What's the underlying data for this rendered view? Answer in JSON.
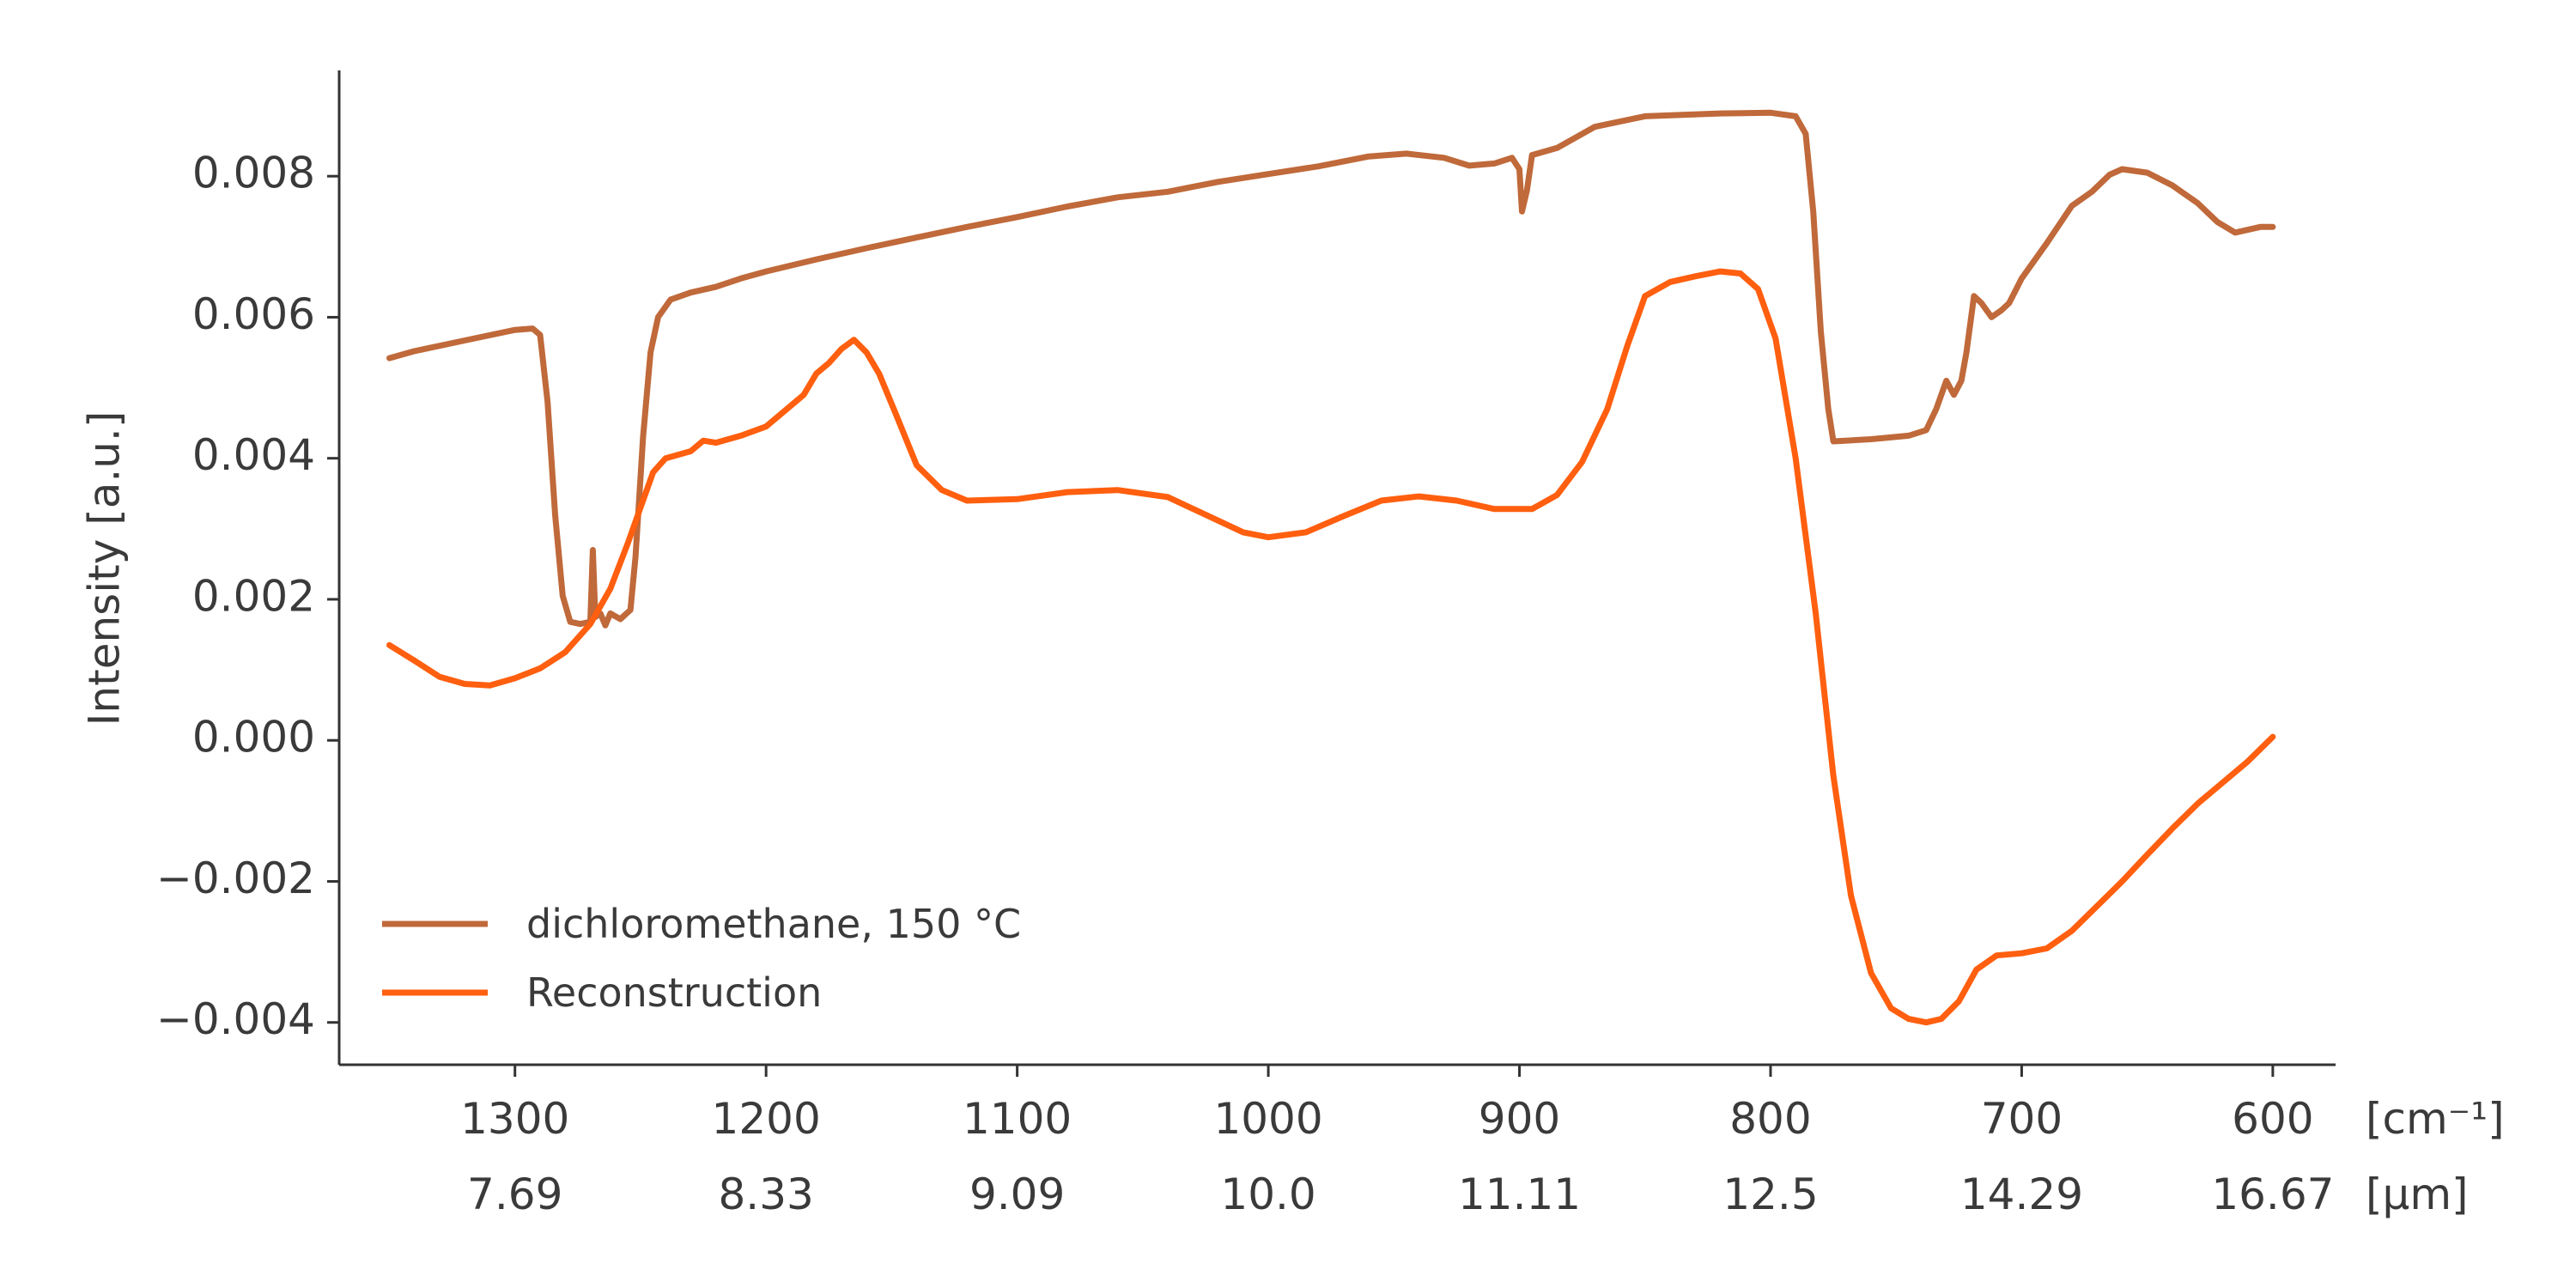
{
  "chart_data": {
    "type": "line",
    "xlabel": "",
    "ylabel": "Intensity [a.u.]",
    "x_unit_primary": "[cm⁻¹]",
    "x_unit_secondary": "[μm]",
    "x_reversed": true,
    "xlim": [
      1370,
      575
    ],
    "ylim": [
      -0.0046,
      0.0095
    ],
    "x_ticks": [
      1300,
      1200,
      1100,
      1000,
      900,
      800,
      700,
      600
    ],
    "x_tick_labels": [
      "1300",
      "1200",
      "1100",
      "1000",
      "900",
      "800",
      "700",
      "600"
    ],
    "x_tick_labels_secondary": [
      "7.69",
      "8.33",
      "9.09",
      "10.0",
      "11.11",
      "12.5",
      "14.29",
      "16.67"
    ],
    "y_ticks": [
      0.008,
      0.006,
      0.004,
      0.002,
      0.0,
      -0.002,
      -0.004
    ],
    "y_tick_labels": [
      "0.008",
      "0.006",
      "0.004",
      "0.002",
      "0.000",
      "−0.002",
      "−0.004"
    ],
    "grid": false,
    "legend_position": "bottom-left",
    "series": [
      {
        "name": "dichloromethane, 150 °C",
        "color": "#c0693a",
        "points": [
          [
            1350,
            0.00542
          ],
          [
            1340,
            0.00552
          ],
          [
            1320,
            0.00567
          ],
          [
            1300,
            0.00582
          ],
          [
            1293,
            0.00584
          ],
          [
            1290,
            0.00575
          ],
          [
            1287,
            0.0048
          ],
          [
            1284,
            0.0032
          ],
          [
            1281,
            0.00205
          ],
          [
            1278,
            0.00168
          ],
          [
            1274,
            0.00165
          ],
          [
            1270,
            0.00168
          ],
          [
            1269,
            0.0027
          ],
          [
            1268,
            0.00175
          ],
          [
            1266,
            0.0018
          ],
          [
            1264,
            0.00163
          ],
          [
            1262,
            0.0018
          ],
          [
            1258,
            0.00172
          ],
          [
            1254,
            0.00185
          ],
          [
            1252,
            0.0026
          ],
          [
            1249,
            0.0043
          ],
          [
            1246,
            0.0055
          ],
          [
            1243,
            0.006
          ],
          [
            1238,
            0.00625
          ],
          [
            1230,
            0.00635
          ],
          [
            1220,
            0.00643
          ],
          [
            1210,
            0.00655
          ],
          [
            1200,
            0.00665
          ],
          [
            1180,
            0.00682
          ],
          [
            1160,
            0.00698
          ],
          [
            1140,
            0.00713
          ],
          [
            1120,
            0.00728
          ],
          [
            1100,
            0.00742
          ],
          [
            1080,
            0.00757
          ],
          [
            1060,
            0.0077
          ],
          [
            1040,
            0.00778
          ],
          [
            1020,
            0.00792
          ],
          [
            1000,
            0.00803
          ],
          [
            980,
            0.00814
          ],
          [
            960,
            0.00828
          ],
          [
            945,
            0.00832
          ],
          [
            930,
            0.00826
          ],
          [
            920,
            0.00815
          ],
          [
            910,
            0.00818
          ],
          [
            903,
            0.00826
          ],
          [
            900,
            0.0081
          ],
          [
            899,
            0.0075
          ],
          [
            897,
            0.0078
          ],
          [
            895,
            0.0083
          ],
          [
            885,
            0.0084
          ],
          [
            870,
            0.0087
          ],
          [
            850,
            0.00885
          ],
          [
            820,
            0.00889
          ],
          [
            800,
            0.0089
          ],
          [
            790,
            0.00885
          ],
          [
            786,
            0.0086
          ],
          [
            783,
            0.0075
          ],
          [
            780,
            0.0058
          ],
          [
            777,
            0.0047
          ],
          [
            775,
            0.00424
          ],
          [
            760,
            0.00427
          ],
          [
            745,
            0.00432
          ],
          [
            738,
            0.0044
          ],
          [
            734,
            0.0047
          ],
          [
            730,
            0.0051
          ],
          [
            727,
            0.0049
          ],
          [
            724,
            0.0051
          ],
          [
            722,
            0.0055
          ],
          [
            719,
            0.0063
          ],
          [
            716,
            0.0062
          ],
          [
            712,
            0.006
          ],
          [
            708,
            0.0061
          ],
          [
            705,
            0.0062
          ],
          [
            700,
            0.00655
          ],
          [
            690,
            0.00705
          ],
          [
            680,
            0.00758
          ],
          [
            672,
            0.00778
          ],
          [
            665,
            0.00802
          ],
          [
            660,
            0.0081
          ],
          [
            650,
            0.00805
          ],
          [
            640,
            0.00787
          ],
          [
            630,
            0.00762
          ],
          [
            622,
            0.00735
          ],
          [
            615,
            0.0072
          ],
          [
            605,
            0.00728
          ],
          [
            600,
            0.00728
          ]
        ]
      },
      {
        "name": "Reconstruction",
        "color": "#ff5f0f",
        "points": [
          [
            1350,
            0.00135
          ],
          [
            1340,
            0.00113
          ],
          [
            1330,
            0.0009
          ],
          [
            1320,
            0.0008
          ],
          [
            1310,
            0.00078
          ],
          [
            1300,
            0.00088
          ],
          [
            1290,
            0.00102
          ],
          [
            1280,
            0.00125
          ],
          [
            1270,
            0.00165
          ],
          [
            1262,
            0.00215
          ],
          [
            1255,
            0.0028
          ],
          [
            1250,
            0.0033
          ],
          [
            1245,
            0.0038
          ],
          [
            1240,
            0.004
          ],
          [
            1230,
            0.0041
          ],
          [
            1225,
            0.00425
          ],
          [
            1220,
            0.00422
          ],
          [
            1210,
            0.00432
          ],
          [
            1200,
            0.00445
          ],
          [
            1195,
            0.0046
          ],
          [
            1185,
            0.0049
          ],
          [
            1180,
            0.0052
          ],
          [
            1175,
            0.00535
          ],
          [
            1170,
            0.00555
          ],
          [
            1165,
            0.00568
          ],
          [
            1160,
            0.0055
          ],
          [
            1155,
            0.0052
          ],
          [
            1148,
            0.0046
          ],
          [
            1140,
            0.0039
          ],
          [
            1130,
            0.00355
          ],
          [
            1120,
            0.0034
          ],
          [
            1100,
            0.00342
          ],
          [
            1080,
            0.00352
          ],
          [
            1060,
            0.00355
          ],
          [
            1040,
            0.00345
          ],
          [
            1025,
            0.0032
          ],
          [
            1010,
            0.00295
          ],
          [
            1000,
            0.00288
          ],
          [
            985,
            0.00295
          ],
          [
            970,
            0.00318
          ],
          [
            955,
            0.0034
          ],
          [
            940,
            0.00346
          ],
          [
            925,
            0.0034
          ],
          [
            910,
            0.00328
          ],
          [
            895,
            0.00328
          ],
          [
            885,
            0.00348
          ],
          [
            875,
            0.00395
          ],
          [
            865,
            0.0047
          ],
          [
            857,
            0.0056
          ],
          [
            850,
            0.0063
          ],
          [
            840,
            0.0065
          ],
          [
            830,
            0.00658
          ],
          [
            820,
            0.00665
          ],
          [
            812,
            0.00662
          ],
          [
            805,
            0.0064
          ],
          [
            798,
            0.0057
          ],
          [
            790,
            0.004
          ],
          [
            782,
            0.0018
          ],
          [
            775,
            -0.0005
          ],
          [
            768,
            -0.0022
          ],
          [
            760,
            -0.0033
          ],
          [
            752,
            -0.0038
          ],
          [
            745,
            -0.00395
          ],
          [
            738,
            -0.004
          ],
          [
            732,
            -0.00395
          ],
          [
            725,
            -0.0037
          ],
          [
            718,
            -0.00325
          ],
          [
            710,
            -0.00305
          ],
          [
            700,
            -0.00302
          ],
          [
            690,
            -0.00295
          ],
          [
            680,
            -0.0027
          ],
          [
            670,
            -0.00235
          ],
          [
            660,
            -0.002
          ],
          [
            650,
            -0.00162
          ],
          [
            640,
            -0.00125
          ],
          [
            630,
            -0.0009
          ],
          [
            620,
            -0.0006
          ],
          [
            610,
            -0.0003
          ],
          [
            600,
            5e-05
          ]
        ]
      }
    ]
  }
}
